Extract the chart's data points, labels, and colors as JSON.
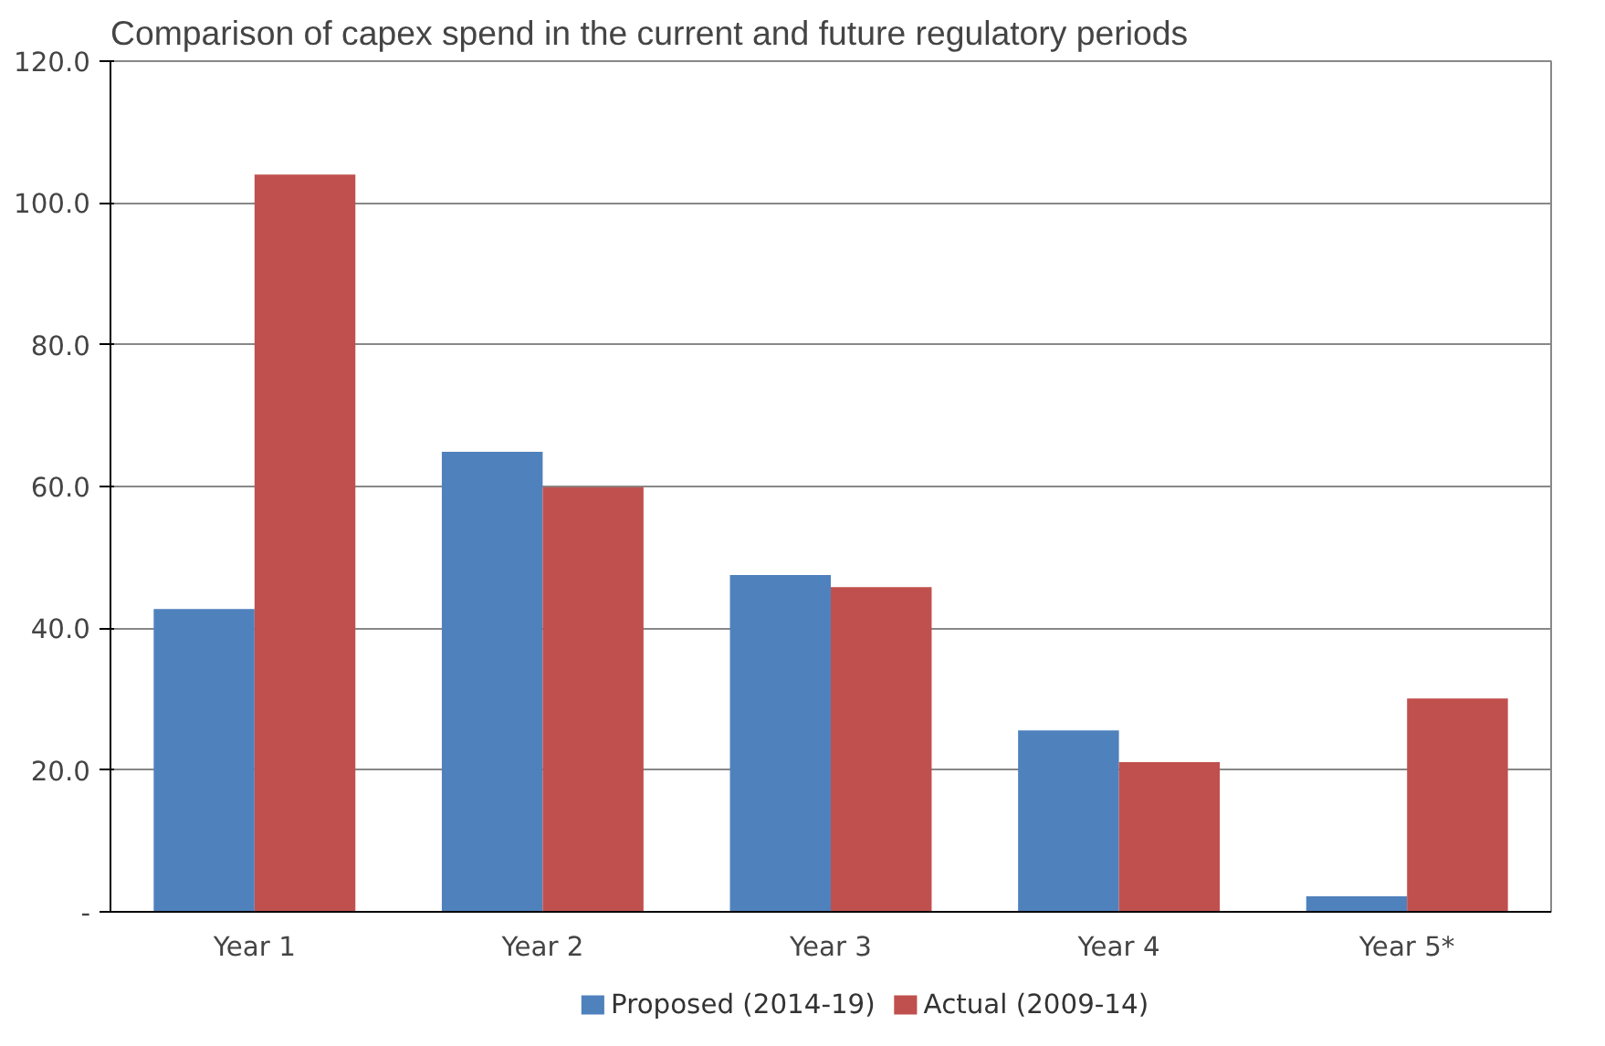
{
  "chart_data": {
    "type": "bar",
    "title": "Comparison of capex spend in the current and future regulatory periods",
    "categories": [
      "Year 1",
      "Year 2",
      "Year 3",
      "Year 4",
      "Year 5*"
    ],
    "series": [
      {
        "name": "Proposed (2014-19)",
        "color": "#4f81bd",
        "values": [
          42.7,
          64.9,
          47.5,
          25.6,
          2.2
        ]
      },
      {
        "name": "Actual (2009-14)",
        "color": "#c0504d",
        "values": [
          104.0,
          59.9,
          45.8,
          21.1,
          30.1
        ]
      }
    ],
    "ylim": [
      0,
      120
    ],
    "yticks": [
      {
        "value": 0,
        "label": "-"
      },
      {
        "value": 20,
        "label": "20.0"
      },
      {
        "value": 40,
        "label": "40.0"
      },
      {
        "value": 60,
        "label": "60.0"
      },
      {
        "value": 80,
        "label": "80.0"
      },
      {
        "value": 100,
        "label": "100.0"
      },
      {
        "value": 120,
        "label": "120.0"
      }
    ],
    "grid": "y",
    "legend": "bottom"
  }
}
